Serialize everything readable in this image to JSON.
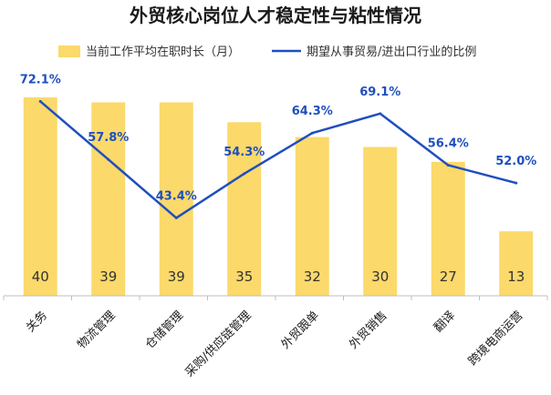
{
  "title": "外贸核心岗位人才稳定性与粘性情况",
  "colors": {
    "bar": "#fbd96b",
    "line": "#1f4fbf",
    "axis": "#bfbfbf"
  },
  "chart_data": {
    "type": "bar",
    "title": "外贸核心岗位人才稳定性与粘性情况",
    "categories": [
      "关务",
      "物流管理",
      "仓储管理",
      "采购/供应链管理",
      "外贸跟单",
      "外贸销售",
      "翻译",
      "跨境电商运营"
    ],
    "series": [
      {
        "name": "当前工作平均在职时长（月）",
        "type": "bar",
        "values": [
          40,
          39,
          39,
          35,
          32,
          30,
          27,
          13
        ],
        "labels": [
          "40",
          "39",
          "39",
          "35",
          "32",
          "30",
          "27",
          "13"
        ]
      },
      {
        "name": "期望从事贸易/进出口行业的比例",
        "type": "line",
        "values": [
          72.1,
          57.8,
          43.4,
          54.3,
          64.3,
          69.1,
          56.4,
          52.0
        ],
        "labels": [
          "72.1%",
          "57.8%",
          "43.4%",
          "54.3%",
          "64.3%",
          "69.1%",
          "56.4%",
          "52.0%"
        ]
      }
    ],
    "legend": "top",
    "grid": false
  }
}
